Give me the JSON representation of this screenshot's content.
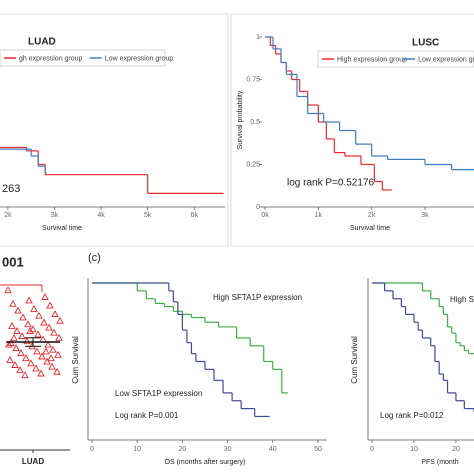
{
  "chart_data": [
    {
      "type": "step",
      "title": "LUAD",
      "xlabel": "Survival time",
      "annotation": "263",
      "legend": true,
      "xlim": [
        1830,
        6660
      ],
      "ylim": [
        0,
        1
      ],
      "xticks": [
        {
          "value": 2000,
          "label": "2k"
        },
        {
          "value": 3000,
          "label": "3k"
        },
        {
          "value": 4000,
          "label": "4k"
        },
        {
          "value": 5000,
          "label": "5k"
        },
        {
          "value": 6000,
          "label": "6k"
        }
      ],
      "series": [
        {
          "name": "gh expression group",
          "color": "#e8292b",
          "x": [
            1830,
            2400,
            2650,
            2800,
            5000,
            6600
          ],
          "values": [
            0.35,
            0.33,
            0.25,
            0.19,
            0.08,
            0.08
          ]
        },
        {
          "name": "Low expression group",
          "color": "#3a7fc4",
          "x": [
            1830,
            2500,
            2650,
            2800
          ],
          "values": [
            0.34,
            0.3,
            0.24,
            0.2
          ]
        }
      ]
    },
    {
      "type": "step",
      "title": "LUSC",
      "xlabel": "Survival time",
      "ylabel": "Survival probability",
      "annotation": "log rank P=0.52176",
      "legend": true,
      "xlim": [
        0,
        3920
      ],
      "ylim": [
        0,
        1
      ],
      "xticks": [
        {
          "value": 0,
          "label": "0k"
        },
        {
          "value": 1000,
          "label": "1k"
        },
        {
          "value": 2000,
          "label": "2k"
        },
        {
          "value": 3000,
          "label": "3k"
        }
      ],
      "yticks": [
        0,
        0.25,
        0.5,
        0.75,
        1
      ],
      "series": [
        {
          "name": "High expression group",
          "color": "#e8292b",
          "x": [
            0,
            100,
            200,
            300,
            400,
            500,
            650,
            800,
            1000,
            1150,
            1300,
            1500,
            1800,
            2050,
            2200,
            2350
          ],
          "values": [
            1,
            0.95,
            0.9,
            0.85,
            0.8,
            0.75,
            0.68,
            0.6,
            0.5,
            0.4,
            0.32,
            0.3,
            0.25,
            0.15,
            0.1,
            0.1
          ]
        },
        {
          "name": "Low expression group",
          "color": "#3a7fc4",
          "x": [
            0,
            150,
            300,
            400,
            600,
            800,
            1100,
            1400,
            1700,
            2000,
            2300,
            3000,
            3500,
            3920
          ],
          "values": [
            1,
            0.93,
            0.85,
            0.78,
            0.65,
            0.55,
            0.5,
            0.45,
            0.37,
            0.3,
            0.28,
            0.25,
            0.22,
            0.22
          ]
        }
      ]
    },
    {
      "type": "strip",
      "annotation": "001",
      "categories": [
        "LUAD"
      ],
      "color": "#e8292b",
      "ylim": [
        0,
        10
      ],
      "mean": 6.35,
      "error": 0.25,
      "values": [
        9.4,
        9.0,
        8.8,
        8.6,
        8.5,
        8.3,
        8.2,
        8.0,
        7.9,
        7.8,
        7.6,
        7.5,
        7.4,
        7.3,
        7.2,
        7.1,
        7.0,
        6.9,
        6.8,
        6.7,
        6.6,
        6.5,
        6.4,
        6.3,
        6.2,
        6.1,
        6.0,
        5.9,
        5.8,
        5.7,
        5.6,
        5.5,
        5.4,
        5.3,
        5.2,
        5.1,
        5.0,
        4.9,
        4.8,
        4.7,
        4.6,
        4.5,
        4.4,
        6.2,
        5.8,
        7.0,
        6.6,
        5.4
      ]
    },
    {
      "type": "step",
      "panel_label": "(c)",
      "xlabel": "OS (months after surgery)",
      "ylabel": "Cum Survival",
      "annotation": "Log rank P=0.001",
      "legend": false,
      "xlim": [
        0,
        52
      ],
      "ylim": [
        0,
        1
      ],
      "xticks": [
        0,
        10,
        20,
        30,
        40,
        50
      ],
      "series": [
        {
          "name": "High SFTA1P expression",
          "color": "#3fae49",
          "x": [
            0,
            10,
            12,
            14,
            16,
            18,
            20,
            22,
            25,
            28,
            32,
            35,
            38,
            40,
            42,
            43
          ],
          "values": [
            1,
            0.95,
            0.9,
            0.87,
            0.85,
            0.82,
            0.8,
            0.78,
            0.75,
            0.72,
            0.65,
            0.6,
            0.5,
            0.45,
            0.3,
            0.3
          ]
        },
        {
          "name": "Low SFTA1P expression",
          "color": "#3d4a9a",
          "x": [
            0,
            17,
            18,
            19,
            20,
            21,
            22,
            23,
            25,
            27,
            29,
            31,
            33,
            36,
            39
          ],
          "values": [
            1,
            0.95,
            0.88,
            0.8,
            0.7,
            0.62,
            0.55,
            0.5,
            0.45,
            0.38,
            0.3,
            0.25,
            0.2,
            0.15,
            0.15
          ]
        }
      ]
    },
    {
      "type": "step",
      "xlabel": "PFS (month",
      "ylabel": "Cum Survival",
      "annotation": "Log rank P=0.012",
      "legend": false,
      "xlim": [
        0,
        24.3
      ],
      "ylim": [
        0,
        1
      ],
      "xticks": [
        0,
        10,
        20
      ],
      "series": [
        {
          "name": "High S",
          "color": "#3fae49",
          "x": [
            0,
            12,
            14,
            16,
            17,
            18,
            19,
            20,
            21,
            22,
            23,
            24.3
          ],
          "values": [
            1,
            0.95,
            0.9,
            0.85,
            0.8,
            0.72,
            0.68,
            0.62,
            0.6,
            0.57,
            0.55,
            0.55
          ]
        },
        {
          "color": "#3d4a9a",
          "x": [
            0,
            3,
            5,
            7,
            8,
            10,
            11,
            12,
            14,
            15,
            16,
            17,
            18,
            20,
            22,
            24.3
          ],
          "values": [
            1,
            0.95,
            0.9,
            0.85,
            0.8,
            0.75,
            0.7,
            0.65,
            0.6,
            0.5,
            0.42,
            0.38,
            0.3,
            0.25,
            0.2,
            0.18
          ]
        }
      ]
    }
  ]
}
